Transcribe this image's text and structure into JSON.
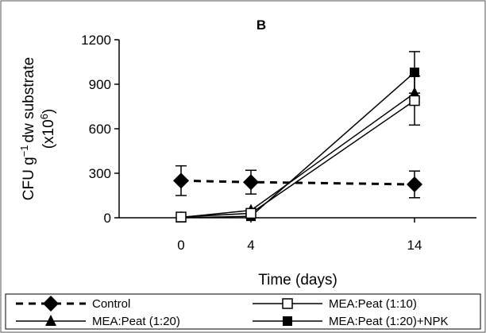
{
  "chart_data": {
    "type": "line",
    "panel_label": "B",
    "title": "",
    "xlabel": "Time (days)",
    "ylabel": {
      "line1": "CFU g",
      "line1_sup": "−1",
      "line1_rest": "dw substrate",
      "line2": "(x10",
      "line2_sup": "6",
      "line2_rest": ")"
    },
    "x": [
      "0",
      "4",
      "14"
    ],
    "ylim": [
      0,
      1200
    ],
    "yticks": [
      0,
      300,
      600,
      900,
      1200
    ],
    "grid": false,
    "legend_position": "bottom",
    "series": [
      {
        "name": "Control",
        "values": [
          250,
          240,
          225
        ],
        "errors": [
          100,
          80,
          90
        ],
        "marker": "diamond",
        "line": "dashed"
      },
      {
        "name": "MEA:Peat (1:10)",
        "values": [
          5,
          30,
          790
        ],
        "errors": [
          0,
          0,
          165
        ],
        "marker": "open-square",
        "line": "solid"
      },
      {
        "name": "MEA:Peat (1:20)",
        "values": [
          3,
          50,
          840
        ],
        "errors": [
          0,
          0,
          0
        ],
        "marker": "triangle",
        "line": "solid"
      },
      {
        "name": "MEA:Peat (1:20)+NPK",
        "values": [
          0,
          10,
          980
        ],
        "errors": [
          0,
          0,
          140
        ],
        "marker": "filled-square",
        "line": "solid"
      }
    ]
  },
  "colors": {
    "line": "#000000",
    "background": "#ffffff",
    "frame": "#555555"
  }
}
